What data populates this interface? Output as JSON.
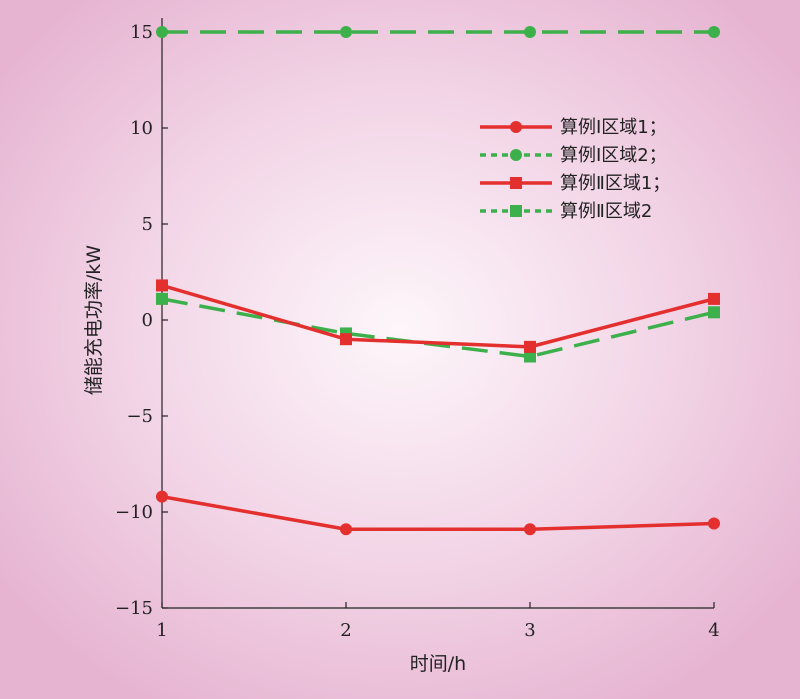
{
  "chart_data": {
    "type": "line",
    "title": "",
    "xlabel": "时间/h",
    "ylabel": "储能充电功率/kW",
    "x": [
      1,
      2,
      3,
      4
    ],
    "xlim": [
      1,
      4
    ],
    "ylim": [
      -15,
      15
    ],
    "xticks": [
      "1",
      "2",
      "3",
      "4"
    ],
    "yticks": [
      "15",
      "10",
      "5",
      "0",
      "−5",
      "−10",
      "−15"
    ],
    "grid": false,
    "legend_position": "top-right",
    "series": [
      {
        "name": "算例Ⅰ区域1；",
        "values": [
          -9.2,
          -10.9,
          -10.9,
          -10.6
        ],
        "color": "#e42f2f",
        "marker": "circle",
        "dash": "solid"
      },
      {
        "name": "算例Ⅰ区域2；",
        "values": [
          15,
          15,
          15,
          15
        ],
        "color": "#3cb04a",
        "marker": "circle",
        "dash": "dashed"
      },
      {
        "name": "算例Ⅱ区域1；",
        "values": [
          1.8,
          -1.0,
          -1.4,
          1.1
        ],
        "color": "#e42f2f",
        "marker": "square",
        "dash": "solid"
      },
      {
        "name": "算例Ⅱ区域2",
        "values": [
          1.1,
          -0.7,
          -1.9,
          0.4
        ],
        "color": "#3cb04a",
        "marker": "square",
        "dash": "dashed"
      }
    ]
  }
}
